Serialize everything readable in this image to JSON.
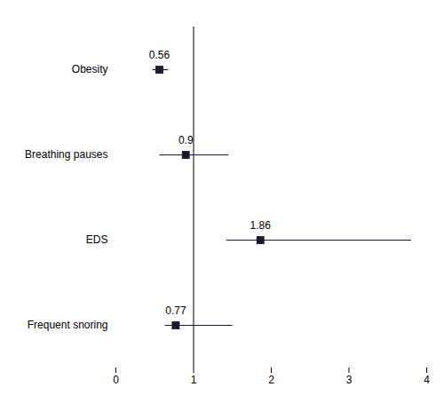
{
  "chart_data": {
    "type": "forest",
    "categories": [
      "Obesity",
      "Breathing pauses",
      "EDS",
      "Frequent snoring"
    ],
    "values": [
      0.56,
      0.9,
      1.86,
      0.77
    ],
    "ci_low": [
      0.47,
      0.56,
      1.42,
      0.63
    ],
    "ci_high": [
      0.67,
      1.45,
      3.8,
      1.5
    ],
    "color": "#1a1a2e",
    "xlim": [
      0,
      4
    ],
    "xticks": [
      0,
      1,
      2,
      3,
      4
    ],
    "reference_line": 1,
    "data_labels": true,
    "grid": false
  }
}
